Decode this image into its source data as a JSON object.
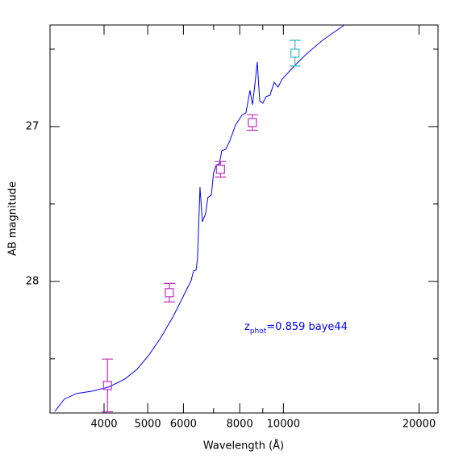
{
  "chart_data": {
    "type": "line",
    "x_scale": "log",
    "xlabel": "Wavelength (Å)",
    "ylabel": "AB magnitude",
    "xlim": [
      3035,
      22030
    ],
    "ylim": [
      28.85,
      26.344
    ],
    "xticks": [
      4000,
      5000,
      6000,
      8000,
      10000,
      20000
    ],
    "xticks_minor": [
      7000,
      9000
    ],
    "yticks": [
      27,
      28
    ],
    "yticks_minor": [
      26.5,
      27.5,
      28.5
    ],
    "annotation": {
      "main": "z",
      "subscript": "phot",
      "rest": "=0.859 baye44",
      "color": "#0000ff"
    },
    "series": [
      {
        "marker": "none",
        "color": "#0000ff",
        "x": [
          3112,
          3266,
          3477,
          3776,
          4101,
          4452,
          4734,
          5036,
          5358,
          5700,
          6063,
          6240,
          6320,
          6400,
          6450,
          6530,
          6610,
          6720,
          6800,
          6920,
          7000,
          7090,
          7210,
          7300,
          7450,
          7600,
          7830,
          8090,
          8260,
          8430,
          8540,
          8645,
          8750,
          8860,
          9000,
          9150,
          9340,
          9540,
          9730,
          9940,
          10570,
          11250,
          12210,
          13650
        ],
        "values": [
          28.839,
          28.76,
          28.724,
          28.708,
          28.682,
          28.63,
          28.568,
          28.474,
          28.359,
          28.224,
          28.068,
          27.995,
          27.932,
          27.927,
          27.849,
          27.391,
          27.615,
          27.563,
          27.458,
          27.443,
          27.297,
          27.25,
          27.24,
          27.156,
          27.146,
          27.094,
          26.99,
          26.927,
          26.911,
          26.766,
          26.859,
          26.729,
          26.583,
          26.833,
          26.849,
          26.807,
          26.797,
          26.714,
          26.745,
          26.693,
          26.609,
          26.531,
          26.443,
          26.344
        ]
      },
      {
        "marker": "square",
        "color": "#c030c0",
        "x": [
          4070,
          5585,
          7250,
          8535
        ],
        "values": [
          28.672,
          28.073,
          27.276,
          26.974
        ],
        "errors": [
          0.17,
          0.06,
          0.05,
          0.05
        ]
      },
      {
        "marker": "square",
        "color": "#30b8c0",
        "x": [
          10610
        ],
        "values": [
          26.526
        ],
        "errors": [
          0.083
        ]
      }
    ]
  }
}
